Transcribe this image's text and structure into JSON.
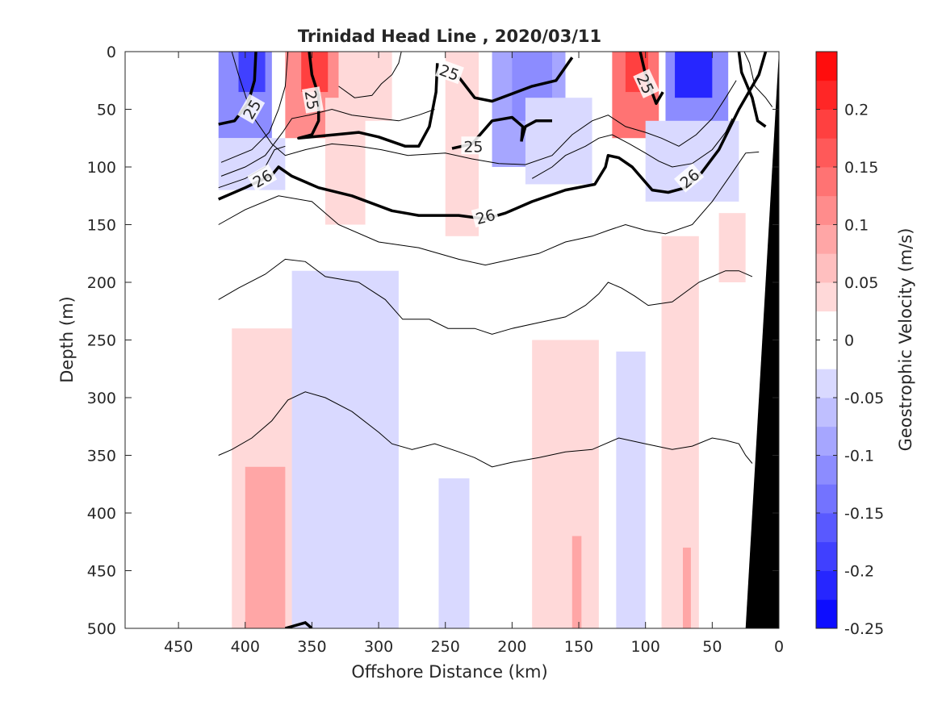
{
  "chart_data": {
    "type": "heatmap",
    "title": "Trinidad Head Line , 2020/03/11",
    "xlabel": "Offshore Distance (km)",
    "ylabel": "Depth (m)",
    "xlim": [
      490,
      0
    ],
    "ylim": [
      0,
      500
    ],
    "x_reversed": true,
    "y_reversed": true,
    "x_ticks": [
      450,
      400,
      350,
      300,
      250,
      200,
      150,
      100,
      50,
      0
    ],
    "y_ticks": [
      0,
      50,
      100,
      150,
      200,
      250,
      300,
      350,
      400,
      450,
      500
    ],
    "colorbar": {
      "label": "Geostrophic Velocity (m/s)",
      "range": [
        -0.25,
        0.25
      ],
      "step": 0.025,
      "ticks": [
        0.2,
        0.15,
        0.1,
        0.05,
        0,
        -0.05,
        -0.1,
        -0.15,
        -0.2,
        -0.25
      ],
      "tick_labels": [
        "0.2",
        "0.15",
        "0.1",
        "0.05",
        "0",
        "-0.05",
        "-0.1",
        "-0.15",
        "-0.2",
        "-0.25"
      ],
      "colormap": "blue-white-red",
      "negative_color": "#0000ff",
      "positive_color": "#ff0000"
    },
    "velocity_blobs": [
      {
        "x": [
          420,
          380
        ],
        "y": [
          0,
          75
        ],
        "v": -0.12
      },
      {
        "x": [
          405,
          385
        ],
        "y": [
          0,
          35
        ],
        "v": -0.18
      },
      {
        "x": [
          420,
          370
        ],
        "y": [
          75,
          120
        ],
        "v": -0.05
      },
      {
        "x": [
          370,
          330
        ],
        "y": [
          0,
          75
        ],
        "v": 0.12
      },
      {
        "x": [
          358,
          338
        ],
        "y": [
          0,
          35
        ],
        "v": 0.18
      },
      {
        "x": [
          340,
          310
        ],
        "y": [
          40,
          150
        ],
        "v": 0.05
      },
      {
        "x": [
          330,
          290
        ],
        "y": [
          0,
          60
        ],
        "v": 0.05
      },
      {
        "x": [
          250,
          225
        ],
        "y": [
          0,
          160
        ],
        "v": 0.05
      },
      {
        "x": [
          215,
          160
        ],
        "y": [
          0,
          100
        ],
        "v": -0.08
      },
      {
        "x": [
          200,
          170
        ],
        "y": [
          0,
          60
        ],
        "v": -0.12
      },
      {
        "x": [
          190,
          140
        ],
        "y": [
          40,
          115
        ],
        "v": -0.05
      },
      {
        "x": [
          125,
          90
        ],
        "y": [
          0,
          75
        ],
        "v": 0.13
      },
      {
        "x": [
          115,
          98
        ],
        "y": [
          0,
          35
        ],
        "v": 0.18
      },
      {
        "x": [
          85,
          38
        ],
        "y": [
          0,
          90
        ],
        "v": -0.1
      },
      {
        "x": [
          78,
          50
        ],
        "y": [
          0,
          40
        ],
        "v": -0.2
      },
      {
        "x": [
          100,
          30
        ],
        "y": [
          60,
          130
        ],
        "v": -0.04
      },
      {
        "x": [
          410,
          350
        ],
        "y": [
          240,
          500
        ],
        "v": 0.05
      },
      {
        "x": [
          400,
          370
        ],
        "y": [
          360,
          500
        ],
        "v": 0.08
      },
      {
        "x": [
          365,
          285
        ],
        "y": [
          190,
          500
        ],
        "v": -0.04
      },
      {
        "x": [
          255,
          232
        ],
        "y": [
          370,
          500
        ],
        "v": -0.05
      },
      {
        "x": [
          185,
          135
        ],
        "y": [
          250,
          500
        ],
        "v": 0.05
      },
      {
        "x": [
          155,
          148
        ],
        "y": [
          420,
          500
        ],
        "v": 0.08
      },
      {
        "x": [
          122,
          100
        ],
        "y": [
          260,
          500
        ],
        "v": -0.04
      },
      {
        "x": [
          88,
          60
        ],
        "y": [
          160,
          500
        ],
        "v": 0.04
      },
      {
        "x": [
          72,
          66
        ],
        "y": [
          430,
          500
        ],
        "v": 0.08
      },
      {
        "x": [
          45,
          25
        ],
        "y": [
          140,
          200
        ],
        "v": 0.04
      }
    ],
    "density_contours": [
      {
        "level": 25,
        "bold": true,
        "labels_at_x": [
          395,
          350,
          250,
          260,
          95
        ],
        "segments": [
          [
            [
              420,
              63
            ],
            [
              408,
              60
            ],
            [
              398,
              45
            ],
            [
              393,
              25
            ],
            [
              392,
              0
            ]
          ],
          [
            [
              352,
              0
            ],
            [
              350,
              20
            ],
            [
              345,
              38
            ],
            [
              345,
              60
            ],
            [
              350,
              72
            ],
            [
              360,
              75
            ],
            [
              315,
              70
            ],
            [
              300,
              74
            ],
            [
              280,
              82
            ],
            [
              270,
              82
            ],
            [
              262,
              65
            ],
            [
              257,
              35
            ],
            [
              256,
              10
            ]
          ],
          [
            [
              240,
              22
            ],
            [
              228,
              40
            ],
            [
              215,
              43
            ],
            [
              185,
              30
            ],
            [
              167,
              25
            ],
            [
              155,
              5
            ]
          ],
          [
            [
              170,
              60
            ],
            [
              182,
              60
            ],
            [
              190,
              65
            ],
            [
              193,
              77
            ]
          ],
          [
            [
              245,
              84
            ],
            [
              230,
              80
            ],
            [
              215,
              60
            ],
            [
              200,
              57
            ],
            [
              192,
              65
            ],
            [
              193,
              78
            ]
          ],
          [
            [
              104,
              0
            ],
            [
              100,
              20
            ],
            [
              92,
              45
            ],
            [
              87,
              35
            ]
          ],
          [
            [
              65,
              0
            ]
          ],
          [
            [
              30,
              0
            ],
            [
              28,
              18
            ],
            [
              20,
              40
            ],
            [
              16,
              60
            ],
            [
              10,
              65
            ]
          ]
        ]
      },
      {
        "level": 26,
        "bold": true,
        "segments": [
          [
            [
              420,
              128
            ],
            [
              400,
              118
            ],
            [
              380,
              107
            ],
            [
              375,
              100
            ],
            [
              365,
              108
            ],
            [
              345,
              118
            ],
            [
              320,
              125
            ],
            [
              290,
              138
            ],
            [
              270,
              142
            ],
            [
              240,
              142
            ],
            [
              220,
              145
            ],
            [
              205,
              140
            ],
            [
              185,
              130
            ],
            [
              160,
              120
            ],
            [
              138,
              115
            ],
            [
              130,
              100
            ],
            [
              128,
              90
            ],
            [
              120,
              92
            ],
            [
              110,
              100
            ],
            [
              95,
              120
            ],
            [
              83,
              122
            ],
            [
              70,
              118
            ],
            [
              58,
              105
            ],
            [
              45,
              85
            ],
            [
              30,
              50
            ],
            [
              20,
              30
            ],
            [
              15,
              20
            ],
            [
              10,
              0
            ]
          ]
        ]
      }
    ],
    "thin_isopycnals": [
      [
        [
          420,
          150
        ],
        [
          400,
          137
        ],
        [
          375,
          125
        ],
        [
          350,
          130
        ],
        [
          330,
          150
        ],
        [
          300,
          165
        ],
        [
          270,
          170
        ],
        [
          240,
          180
        ],
        [
          220,
          185
        ],
        [
          200,
          180
        ],
        [
          180,
          175
        ],
        [
          160,
          165
        ],
        [
          140,
          160
        ],
        [
          128,
          155
        ],
        [
          115,
          150
        ],
        [
          100,
          155
        ],
        [
          85,
          158
        ],
        [
          65,
          150
        ],
        [
          50,
          130
        ],
        [
          35,
          105
        ],
        [
          25,
          88
        ],
        [
          15,
          87
        ]
      ],
      [
        [
          420,
          215
        ],
        [
          405,
          205
        ],
        [
          385,
          193
        ],
        [
          370,
          180
        ],
        [
          355,
          182
        ],
        [
          340,
          195
        ],
        [
          315,
          200
        ],
        [
          295,
          215
        ],
        [
          282,
          232
        ],
        [
          262,
          232
        ],
        [
          248,
          240
        ],
        [
          228,
          240
        ],
        [
          215,
          245
        ],
        [
          200,
          240
        ],
        [
          180,
          235
        ],
        [
          160,
          230
        ],
        [
          145,
          220
        ],
        [
          135,
          210
        ],
        [
          128,
          200
        ],
        [
          118,
          205
        ],
        [
          108,
          212
        ],
        [
          98,
          220
        ],
        [
          80,
          217
        ],
        [
          60,
          200
        ],
        [
          40,
          190
        ],
        [
          30,
          190
        ],
        [
          20,
          195
        ]
      ],
      [
        [
          420,
          350
        ],
        [
          410,
          345
        ],
        [
          395,
          335
        ],
        [
          380,
          320
        ],
        [
          368,
          302
        ],
        [
          355,
          295
        ],
        [
          340,
          300
        ],
        [
          320,
          312
        ],
        [
          300,
          330
        ],
        [
          290,
          340
        ],
        [
          275,
          345
        ],
        [
          258,
          340
        ],
        [
          240,
          347
        ],
        [
          228,
          352
        ],
        [
          215,
          360
        ],
        [
          200,
          356
        ],
        [
          180,
          352
        ],
        [
          160,
          347
        ],
        [
          140,
          345
        ],
        [
          120,
          335
        ],
        [
          100,
          340
        ],
        [
          80,
          345
        ],
        [
          65,
          342
        ],
        [
          50,
          335
        ],
        [
          40,
          337
        ],
        [
          30,
          340
        ],
        [
          25,
          350
        ],
        [
          20,
          357
        ]
      ],
      [
        [
          26,
          0
        ],
        [
          22,
          10
        ],
        [
          18,
          30
        ],
        [
          10,
          40
        ],
        [
          5,
          48
        ]
      ],
      [
        [
          410,
          0
        ],
        [
          405,
          20
        ],
        [
          395,
          55
        ],
        [
          380,
          80
        ],
        [
          370,
          90
        ],
        [
          355,
          85
        ],
        [
          335,
          80
        ],
        [
          315,
          82
        ],
        [
          298,
          85
        ],
        [
          278,
          90
        ],
        [
          250,
          88
        ],
        [
          230,
          93
        ],
        [
          210,
          97
        ],
        [
          190,
          98
        ],
        [
          170,
          90
        ],
        [
          155,
          72
        ],
        [
          140,
          60
        ],
        [
          128,
          55
        ],
        [
          115,
          65
        ],
        [
          100,
          70
        ],
        [
          88,
          75
        ],
        [
          75,
          82
        ],
        [
          62,
          72
        ],
        [
          50,
          58
        ],
        [
          40,
          40
        ],
        [
          32,
          25
        ]
      ],
      [
        [
          418,
          108
        ],
        [
          400,
          100
        ],
        [
          385,
          90
        ],
        [
          372,
          70
        ],
        [
          365,
          58
        ],
        [
          352,
          55
        ],
        [
          335,
          50
        ],
        [
          320,
          55
        ],
        [
          300,
          58
        ],
        [
          285,
          60
        ],
        [
          270,
          55
        ],
        [
          258,
          50
        ]
      ],
      [
        [
          418,
          96
        ],
        [
          395,
          85
        ],
        [
          382,
          70
        ],
        [
          375,
          50
        ],
        [
          370,
          30
        ],
        [
          368,
          0
        ]
      ],
      [
        [
          330,
          30
        ],
        [
          318,
          40
        ],
        [
          305,
          38
        ],
        [
          298,
          28
        ],
        [
          290,
          20
        ],
        [
          285,
          10
        ],
        [
          283,
          0
        ]
      ],
      [
        [
          185,
          110
        ],
        [
          170,
          100
        ],
        [
          160,
          90
        ],
        [
          145,
          82
        ],
        [
          135,
          75
        ],
        [
          125,
          72
        ],
        [
          112,
          80
        ],
        [
          100,
          88
        ],
        [
          90,
          95
        ],
        [
          80,
          100
        ],
        [
          65,
          97
        ],
        [
          50,
          85
        ],
        [
          40,
          70
        ],
        [
          35,
          58
        ]
      ],
      [
        [
          420,
          118
        ],
        [
          400,
          110
        ],
        [
          385,
          100
        ],
        [
          378,
          85
        ],
        [
          370,
          82
        ]
      ]
    ],
    "small_contour_bottom": [
      [
        370,
        500
      ],
      [
        355,
        495
      ],
      [
        350,
        500
      ]
    ],
    "bathymetry": {
      "color": "#000000",
      "shelf": [
        [
          0,
          0
        ],
        [
          25,
          500
        ],
        [
          0,
          500
        ]
      ]
    }
  }
}
